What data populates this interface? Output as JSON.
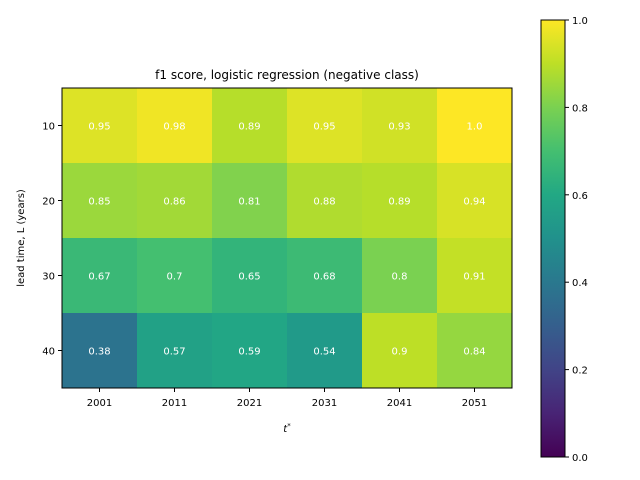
{
  "chart_data": {
    "type": "heatmap",
    "title": "f1 score, logistic regression (negative class)",
    "xlabel_main": "t",
    "xlabel_sup": "*",
    "ylabel": "lead time, L (years)",
    "x_categories": [
      "2001",
      "2011",
      "2021",
      "2031",
      "2041",
      "2051"
    ],
    "y_categories": [
      "10",
      "20",
      "30",
      "40"
    ],
    "values": [
      [
        0.95,
        0.98,
        0.89,
        0.95,
        0.93,
        1.0
      ],
      [
        0.85,
        0.86,
        0.81,
        0.88,
        0.89,
        0.94
      ],
      [
        0.67,
        0.7,
        0.65,
        0.68,
        0.8,
        0.91
      ],
      [
        0.38,
        0.57,
        0.59,
        0.54,
        0.9,
        0.84
      ]
    ],
    "value_labels": [
      [
        "0.95",
        "0.98",
        "0.89",
        "0.95",
        "0.93",
        "1.0"
      ],
      [
        "0.85",
        "0.86",
        "0.81",
        "0.88",
        "0.89",
        "0.94"
      ],
      [
        "0.67",
        "0.7",
        "0.65",
        "0.68",
        "0.8",
        "0.91"
      ],
      [
        "0.38",
        "0.57",
        "0.59",
        "0.54",
        "0.9",
        "0.84"
      ]
    ],
    "colormap": "viridis",
    "vmin": 0.0,
    "vmax": 1.0,
    "colorbar_ticks": [
      "0.0",
      "0.2",
      "0.4",
      "0.6",
      "0.8",
      "1.0"
    ],
    "grid": false,
    "legend": "colorbar-right"
  }
}
